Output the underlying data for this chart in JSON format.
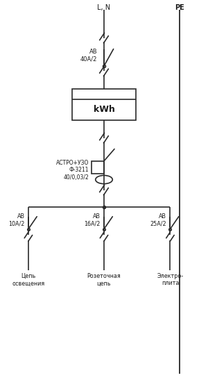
{
  "bg_color": "#ffffff",
  "line_color": "#2a2a2a",
  "text_color": "#1a1a1a",
  "fig_width": 3.0,
  "fig_height": 5.47,
  "dpi": 100,
  "L_N_label": "L, N",
  "PE_label": "PE",
  "main_breaker_label": "AB\n40A/2",
  "kwh_label": "kWh",
  "astro_label": "АСТРО+УЗО\nФ-3211\n40/0,03/2",
  "branch_labels": [
    "AB\n10A/2",
    "AB\n16A/2",
    "AB\n25A/2"
  ],
  "bottom_labels": [
    "Цепь\nосвещения",
    "Розеточная\nцепь",
    "Электро-\nплита"
  ],
  "main_x": 5.5,
  "pe_x": 9.5,
  "xlim": [
    0,
    11
  ],
  "ylim": [
    0,
    19
  ]
}
